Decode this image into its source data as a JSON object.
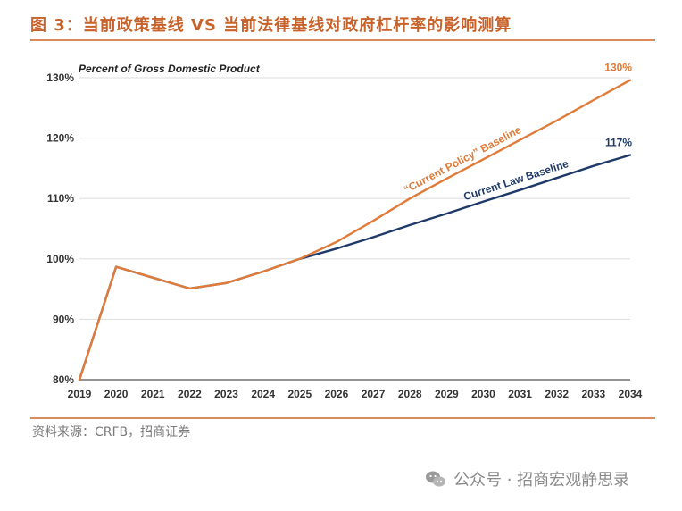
{
  "figure": {
    "title": "图 3：当前政策基线 VS 当前法律基线对政府杠杆率的影响测算",
    "source": "资料来源：CRFB，招商证券"
  },
  "watermark": {
    "text": "公众号 · 招商宏观静思录",
    "icon": "wechat-icon"
  },
  "colors": {
    "current_policy": "#e07b39",
    "current_law": "#1f3a68",
    "title": "#c8622b",
    "grid": "#dddddd"
  },
  "chart_data": {
    "type": "line",
    "note": "Percent of Gross Domestic Product",
    "x": [
      2019,
      2020,
      2021,
      2022,
      2023,
      2024,
      2025,
      2026,
      2027,
      2028,
      2029,
      2030,
      2031,
      2032,
      2033,
      2034
    ],
    "series": [
      {
        "name": "“Current Policy” Baseline",
        "color": "#e07b39",
        "values": [
          80,
          98.7,
          96.9,
          95.1,
          96,
          97.9,
          100,
          102.8,
          106.3,
          110,
          113.3,
          116.5,
          119.7,
          122.9,
          126.3,
          129.6
        ],
        "end_label": "130%"
      },
      {
        "name": "Current Law Baseline",
        "color": "#1f3a68",
        "values": [
          80,
          98.7,
          96.9,
          95.1,
          96,
          97.9,
          100,
          101.7,
          103.6,
          105.6,
          107.5,
          109.5,
          111.4,
          113.4,
          115.4,
          117.2
        ],
        "end_label": "117%"
      }
    ],
    "ylim": [
      80,
      130
    ],
    "yticks": [
      80,
      90,
      100,
      110,
      120,
      130
    ],
    "ytick_labels": [
      "80%",
      "90%",
      "100%",
      "110%",
      "120%",
      "130%"
    ],
    "grid": true,
    "legend": "inline labels on lines"
  }
}
